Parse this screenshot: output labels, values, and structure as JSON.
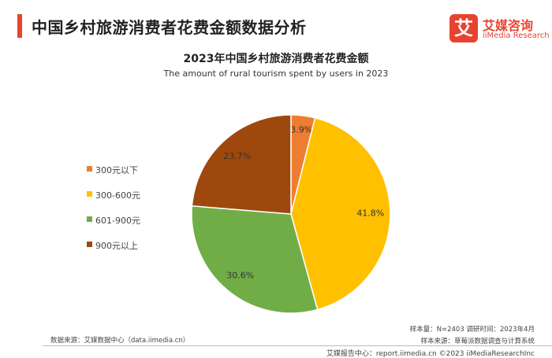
{
  "header": {
    "title": "中国乡村旅游消费者花费金额数据分析"
  },
  "logo": {
    "mark": "艾",
    "name_cn": "艾媒咨询",
    "name_en": "iiMedia Research",
    "brand_color": "#e8432f"
  },
  "chart_data": {
    "type": "pie",
    "title": "2023年中国乡村旅游消费者花费金额",
    "subtitle": "The amount of rural tourism spent by users in 2023",
    "legend_position": "left",
    "slices": [
      {
        "label": "300元以下",
        "value": 3.9,
        "display": "3.9%",
        "color": "#ed7d31"
      },
      {
        "label": "300-600元",
        "value": 41.8,
        "display": "41.8%",
        "color": "#ffc000"
      },
      {
        "label": "601-900元",
        "value": 30.6,
        "display": "30.6%",
        "color": "#70ad47"
      },
      {
        "label": "900元以上",
        "value": 23.7,
        "display": "23.7%",
        "color": "#9e480e"
      }
    ]
  },
  "footer": {
    "source_left": "数据来源：艾媒数据中心（data.iimedia.cn）",
    "sample_size": "样本量：N=2403    调研时间：2023年4月",
    "sample_source": "样本来源：草莓派数据调查与计算系统",
    "report_center": "艾媒报告中心：report.iimedia.cn  ©2023 iiMediaResearchInc"
  }
}
